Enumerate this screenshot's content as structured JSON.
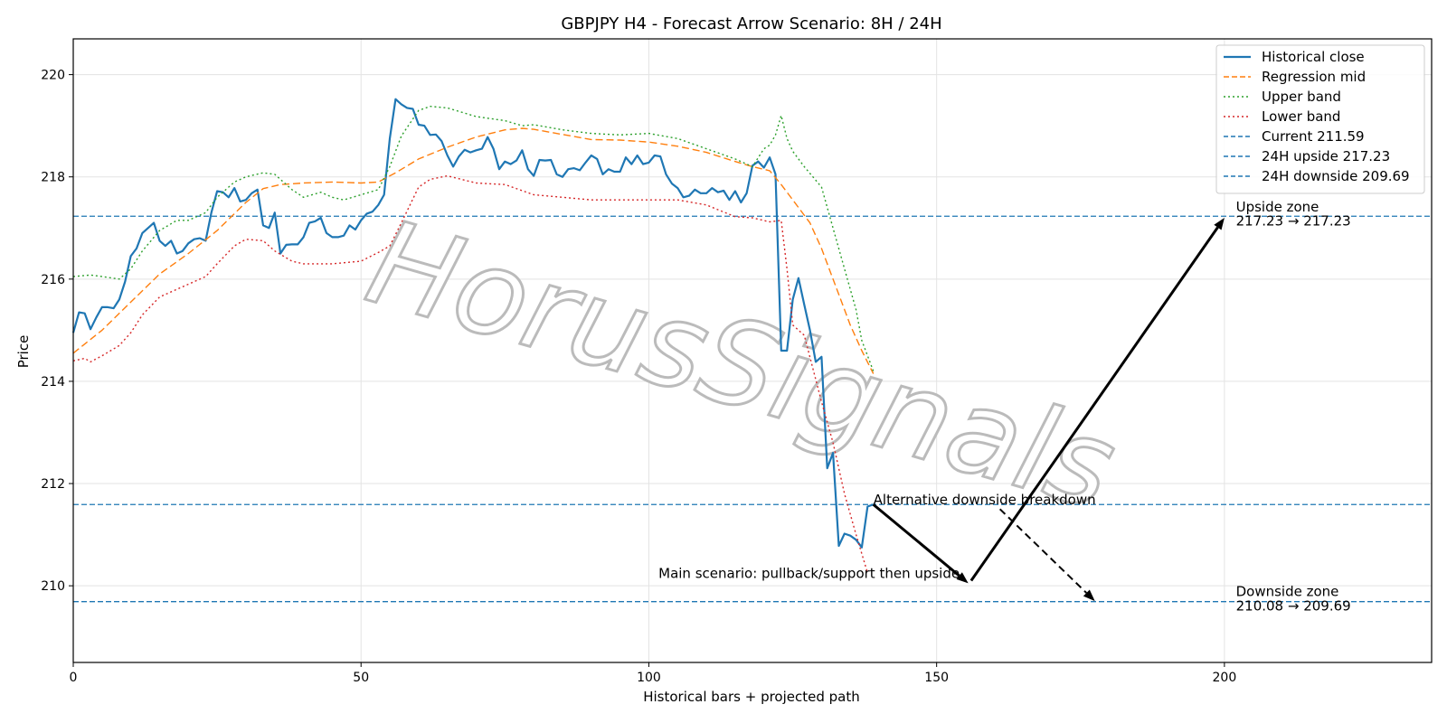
{
  "chart_data": {
    "type": "line",
    "title": "GBPJPY H4 - Forecast Arrow Scenario: 8H / 24H",
    "xlabel": "Historical bars + projected path",
    "ylabel": "Price",
    "xlim": [
      0,
      236
    ],
    "ylim": [
      208.5,
      220.7
    ],
    "xticks": [
      0,
      50,
      100,
      150,
      200
    ],
    "yticks": [
      210,
      212,
      214,
      216,
      218,
      220
    ],
    "grid": true,
    "legend_position": "top-right",
    "watermark": "HorusSignals",
    "colors": {
      "close": "#1f77b4",
      "mid": "#ff7f0e",
      "upper": "#2ca02c",
      "lower": "#d62728",
      "hline": "#1f77b4",
      "arrow": "#000000"
    },
    "series": [
      {
        "name": "Historical close",
        "style": "solid",
        "color": "#1f77b4",
        "x": [
          0,
          1,
          2,
          3,
          4,
          5,
          6,
          7,
          8,
          9,
          10,
          11,
          12,
          13,
          14,
          15,
          16,
          17,
          18,
          19,
          20,
          21,
          22,
          23,
          24,
          25,
          26,
          27,
          28,
          29,
          30,
          31,
          32,
          33,
          34,
          35,
          36,
          37,
          38,
          39,
          40,
          41,
          42,
          43,
          44,
          45,
          46,
          47,
          48,
          49,
          50,
          51,
          52,
          53,
          54,
          55,
          56,
          57,
          58,
          59,
          60,
          61,
          62,
          63,
          64,
          65,
          66,
          67,
          68,
          69,
          70,
          71,
          72,
          73,
          74,
          75,
          76,
          77,
          78,
          79,
          80,
          81,
          82,
          83,
          84,
          85,
          86,
          87,
          88,
          89,
          90,
          91,
          92,
          93,
          94,
          95,
          96,
          97,
          98,
          99,
          100,
          101,
          102,
          103,
          104,
          105,
          106,
          107,
          108,
          109,
          110,
          111,
          112,
          113,
          114,
          115,
          116,
          117,
          118,
          119,
          120,
          121,
          122,
          123,
          124,
          125,
          126,
          127,
          128,
          129,
          130,
          131,
          132,
          133,
          134,
          135,
          136,
          137,
          138,
          139
        ],
        "y": [
          214.95,
          215.35,
          215.33,
          215.02,
          215.25,
          215.45,
          215.45,
          215.43,
          215.6,
          215.95,
          216.45,
          216.6,
          216.9,
          217.0,
          217.1,
          216.75,
          216.65,
          216.75,
          216.5,
          216.55,
          216.7,
          216.78,
          216.8,
          216.75,
          217.3,
          217.72,
          217.7,
          217.6,
          217.78,
          217.52,
          217.55,
          217.68,
          217.75,
          217.05,
          217.0,
          217.3,
          216.5,
          216.67,
          216.68,
          216.68,
          216.82,
          217.1,
          217.13,
          217.2,
          216.9,
          216.82,
          216.82,
          216.85,
          217.05,
          216.97,
          217.15,
          217.28,
          217.32,
          217.45,
          217.65,
          218.75,
          219.52,
          219.42,
          219.35,
          219.33,
          219.02,
          219.0,
          218.82,
          218.83,
          218.7,
          218.42,
          218.2,
          218.4,
          218.53,
          218.48,
          218.52,
          218.55,
          218.78,
          218.55,
          218.15,
          218.3,
          218.25,
          218.32,
          218.52,
          218.15,
          218.02,
          218.33,
          218.32,
          218.33,
          218.05,
          218.0,
          218.15,
          218.17,
          218.13,
          218.28,
          218.42,
          218.35,
          218.05,
          218.15,
          218.1,
          218.1,
          218.38,
          218.25,
          218.42,
          218.25,
          218.28,
          218.42,
          218.4,
          218.05,
          217.87,
          217.78,
          217.6,
          217.63,
          217.75,
          217.68,
          217.68,
          217.78,
          217.7,
          217.73,
          217.55,
          217.72,
          217.5,
          217.68,
          218.22,
          218.3,
          218.18,
          218.38,
          218.05,
          214.6,
          214.6,
          215.6,
          216.02,
          215.5,
          215.0,
          214.38,
          214.48,
          212.3,
          212.6,
          210.78,
          211.02,
          210.98,
          210.9,
          210.75,
          211.55,
          211.59
        ]
      },
      {
        "name": "Regression mid",
        "style": "dashed",
        "color": "#ff7f0e",
        "x": [
          0,
          5,
          10,
          15,
          20,
          25,
          30,
          33,
          36,
          40,
          45,
          50,
          53,
          56,
          60,
          65,
          70,
          75,
          78,
          80,
          85,
          90,
          95,
          100,
          105,
          110,
          115,
          118,
          121,
          123,
          125,
          128,
          130,
          132,
          135,
          137,
          139
        ],
        "y": [
          214.55,
          215.0,
          215.55,
          216.1,
          216.5,
          216.95,
          217.5,
          217.77,
          217.85,
          217.88,
          217.9,
          217.88,
          217.9,
          218.08,
          218.35,
          218.58,
          218.78,
          218.92,
          218.95,
          218.93,
          218.83,
          218.73,
          218.72,
          218.68,
          218.6,
          218.48,
          218.3,
          218.2,
          218.12,
          217.85,
          217.55,
          217.1,
          216.6,
          216.0,
          215.1,
          214.6,
          214.15
        ]
      },
      {
        "name": "Upper band",
        "style": "dotted",
        "color": "#2ca02c",
        "x": [
          0,
          3,
          5,
          8,
          10,
          12,
          15,
          18,
          20,
          23,
          25,
          28,
          30,
          33,
          35,
          38,
          40,
          43,
          45,
          47,
          50,
          53,
          55,
          57,
          60,
          62,
          65,
          70,
          75,
          78,
          80,
          85,
          90,
          95,
          100,
          105,
          110,
          115,
          118,
          120,
          121,
          122,
          123,
          124,
          125,
          127,
          130,
          132,
          134,
          136,
          137,
          139
        ],
        "y": [
          216.05,
          216.08,
          216.05,
          216.0,
          216.2,
          216.55,
          216.95,
          217.15,
          217.15,
          217.3,
          217.6,
          217.9,
          218.0,
          218.08,
          218.05,
          217.75,
          217.6,
          217.7,
          217.6,
          217.55,
          217.65,
          217.75,
          218.2,
          218.8,
          219.3,
          219.38,
          219.35,
          219.18,
          219.1,
          219.0,
          219.02,
          218.92,
          218.85,
          218.82,
          218.85,
          218.75,
          218.55,
          218.35,
          218.2,
          218.55,
          218.62,
          218.82,
          219.2,
          218.75,
          218.5,
          218.2,
          217.8,
          217.0,
          216.2,
          215.4,
          214.8,
          214.2
        ]
      },
      {
        "name": "Lower band",
        "style": "dotted",
        "color": "#d62728",
        "x": [
          0,
          2,
          3,
          5,
          8,
          10,
          12,
          15,
          18,
          20,
          23,
          25,
          28,
          30,
          33,
          35,
          38,
          40,
          43,
          45,
          50,
          53,
          55,
          57,
          60,
          62,
          65,
          70,
          75,
          80,
          85,
          90,
          95,
          100,
          105,
          110,
          115,
          118,
          121,
          123,
          124,
          125,
          127,
          130,
          132,
          134,
          136,
          138
        ],
        "y": [
          214.4,
          214.45,
          214.38,
          214.5,
          214.7,
          214.95,
          215.3,
          215.65,
          215.8,
          215.9,
          216.05,
          216.3,
          216.65,
          216.78,
          216.75,
          216.55,
          216.35,
          216.3,
          216.3,
          216.3,
          216.35,
          216.52,
          216.65,
          217.1,
          217.8,
          217.95,
          218.02,
          217.88,
          217.85,
          217.65,
          217.6,
          217.55,
          217.55,
          217.55,
          217.55,
          217.45,
          217.22,
          217.2,
          217.12,
          217.15,
          216.2,
          215.1,
          214.9,
          213.6,
          212.8,
          211.8,
          211.0,
          210.25
        ]
      }
    ],
    "hlines": [
      {
        "name": "Current 211.59",
        "y": 211.59
      },
      {
        "name": "24H upside 217.23",
        "y": 217.23
      },
      {
        "name": "24H downside 209.69",
        "y": 209.69
      }
    ],
    "arrows": [
      {
        "from": [
          139,
          211.59
        ],
        "to": [
          155.5,
          210.05
        ],
        "style": "solid"
      },
      {
        "from": [
          156,
          210.1
        ],
        "to": [
          200,
          217.2
        ],
        "style": "solid"
      },
      {
        "from": [
          161,
          211.5
        ],
        "to": [
          177.5,
          209.7
        ],
        "style": "dashed"
      }
    ],
    "annotations": [
      {
        "text": "Alternative downside breakdown",
        "x": 139,
        "y": 211.59
      },
      {
        "text": "Main scenario: pullback/support then upside",
        "x": 154,
        "y": 210.15,
        "align": "end"
      },
      {
        "text": "Upside zone",
        "x": 202,
        "y": 217.32
      },
      {
        "text": "217.23 → 217.23",
        "x": 202,
        "y": 217.05
      },
      {
        "text": "Downside zone",
        "x": 202,
        "y": 209.8
      },
      {
        "text": "210.08 → 209.69",
        "x": 202,
        "y": 209.52
      }
    ]
  }
}
